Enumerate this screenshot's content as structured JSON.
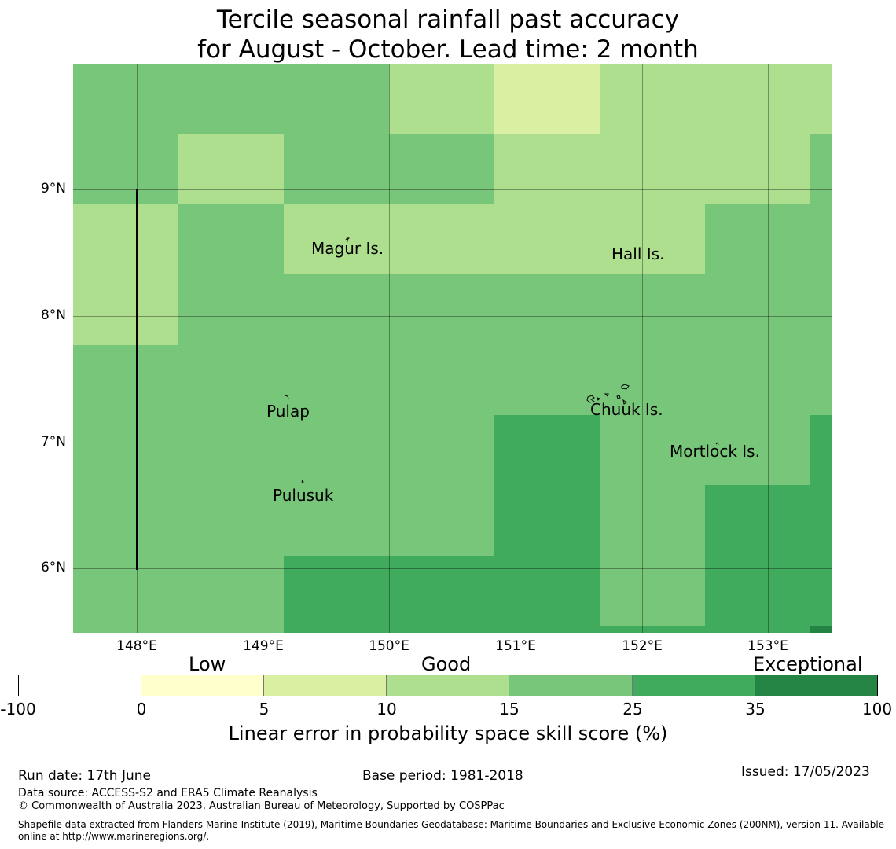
{
  "title": {
    "line1": "Tercile seasonal rainfall past accuracy",
    "line2": "for August - October. Lead time: 2 month"
  },
  "map": {
    "lat_ticks": [
      "9°N",
      "8°N",
      "7°N",
      "6°N"
    ],
    "lon_ticks": [
      "148°E",
      "149°E",
      "150°E",
      "151°E",
      "152°E",
      "153°E"
    ],
    "places": [
      "Magur Is.",
      "Hall Is.",
      "Pulap",
      "Chuuk Is.",
      "Mortlock Is.",
      "Pulusuk"
    ],
    "category_colors": {
      "c10_15": "#addf8e",
      "c15_25": "#78c679",
      "c25_35": "#41ab5d",
      "c5_10": "#d9f0a3",
      "c35_100": "#238443"
    }
  },
  "colorbar": {
    "category_labels": [
      "Low",
      "Good",
      "Exceptional"
    ],
    "ticks": [
      "-100",
      "0",
      "5",
      "10",
      "15",
      "25",
      "35",
      "100"
    ],
    "colors": [
      "#ffffff",
      "#ffffcc",
      "#d9f0a3",
      "#addf8e",
      "#78c679",
      "#41ab5d",
      "#238443"
    ],
    "label": "Linear error in probability space skill score (%)"
  },
  "footer": {
    "run_date": "Run date: 17th June",
    "base_period": "Base period: 1981-2018",
    "issued": "Issued: 17/05/2023",
    "data_source": "Data source: ACCESS-S2 and ERA5 Climate Reanalysis",
    "copyright": "© Commonwealth of Australia 2023, Australian Bureau of Meteorology, Supported by COSPPac",
    "shapefile_line1": "Shapefile data extracted from Flanders Marine Institute (2019), Maritime Boundaries Geodatabase: Maritime Boundaries and Exclusive Economic Zones (200NM), version 11. Available",
    "shapefile_line2": "online at http://www.marineregions.org/."
  }
}
